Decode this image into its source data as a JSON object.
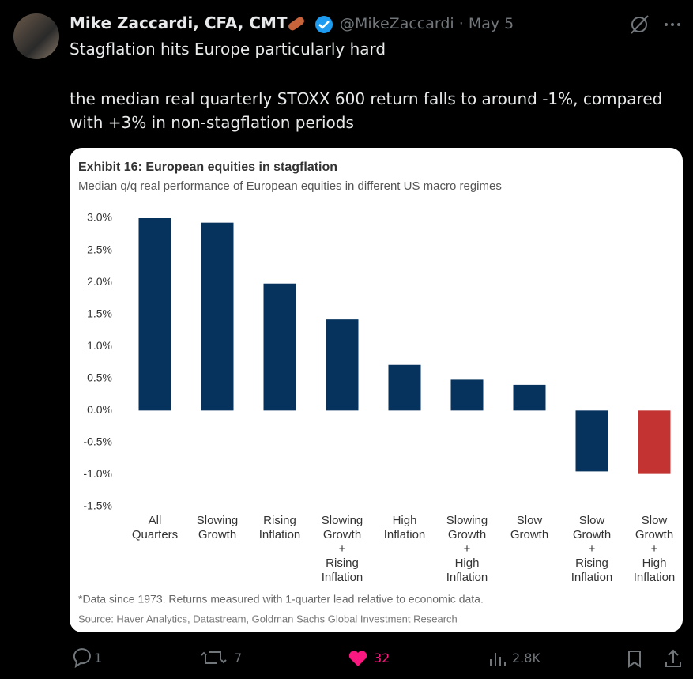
{
  "tweet": {
    "author": "Mike Zaccardi, CFA, CMT",
    "handle": "@MikeZaccardi",
    "separator": "·",
    "date": "May 5",
    "paragraphs": [
      "Stagflation hits Europe particularly hard",
      "the median real quarterly STOXX 600 return falls to around -1%, compared with +3% in non-stagflation periods"
    ],
    "stats": {
      "replies": "1",
      "reposts": "7",
      "likes": "32",
      "views": "2.8K"
    }
  },
  "chart_data": {
    "type": "bar",
    "title": "Exhibit 16: European equities in stagflation",
    "subtitle": "Median q/q real performance of European equities in different US macro regimes",
    "categories": [
      [
        "All",
        "Quarters"
      ],
      [
        "Slowing",
        "Growth"
      ],
      [
        "Rising",
        "Inflation"
      ],
      [
        "Slowing",
        "Growth",
        "+",
        "Rising",
        "Inflation"
      ],
      [
        "High",
        "Inflation"
      ],
      [
        "Slowing",
        "Growth",
        "+",
        "High",
        "Inflation"
      ],
      [
        "Slow",
        "Growth"
      ],
      [
        "Slow",
        "Growth",
        "+",
        "Rising",
        "Inflation"
      ],
      [
        "Slow",
        "Growth",
        "+",
        "High",
        "Inflation"
      ]
    ],
    "values": [
      3.0,
      2.93,
      1.98,
      1.42,
      0.71,
      0.48,
      0.4,
      -0.95,
      -0.99
    ],
    "colors": [
      "#06325e",
      "#06325e",
      "#06325e",
      "#06325e",
      "#06325e",
      "#06325e",
      "#06325e",
      "#06325e",
      "#c23332"
    ],
    "ylim": [
      -1.5,
      3.0
    ],
    "yticks": [
      {
        "value": 3.0,
        "label": "3.0%"
      },
      {
        "value": 2.5,
        "label": "2.5%"
      },
      {
        "value": 2.0,
        "label": "2.0%"
      },
      {
        "value": 1.5,
        "label": "1.5%"
      },
      {
        "value": 1.0,
        "label": "1.0%"
      },
      {
        "value": 0.5,
        "label": "0.5%"
      },
      {
        "value": 0,
        "label": "0.0%"
      },
      {
        "value": -0.5,
        "label": "-0.5%"
      },
      {
        "value": -1.0,
        "label": "-1.0%"
      },
      {
        "value": -1.5,
        "label": "-1.5%"
      }
    ],
    "grid": false,
    "footnote": "*Data since 1973. Returns measured with 1-quarter lead relative to economic data.",
    "source": "Source: Haver Analytics, Datastream, Goldman Sachs Global Investment Research"
  }
}
